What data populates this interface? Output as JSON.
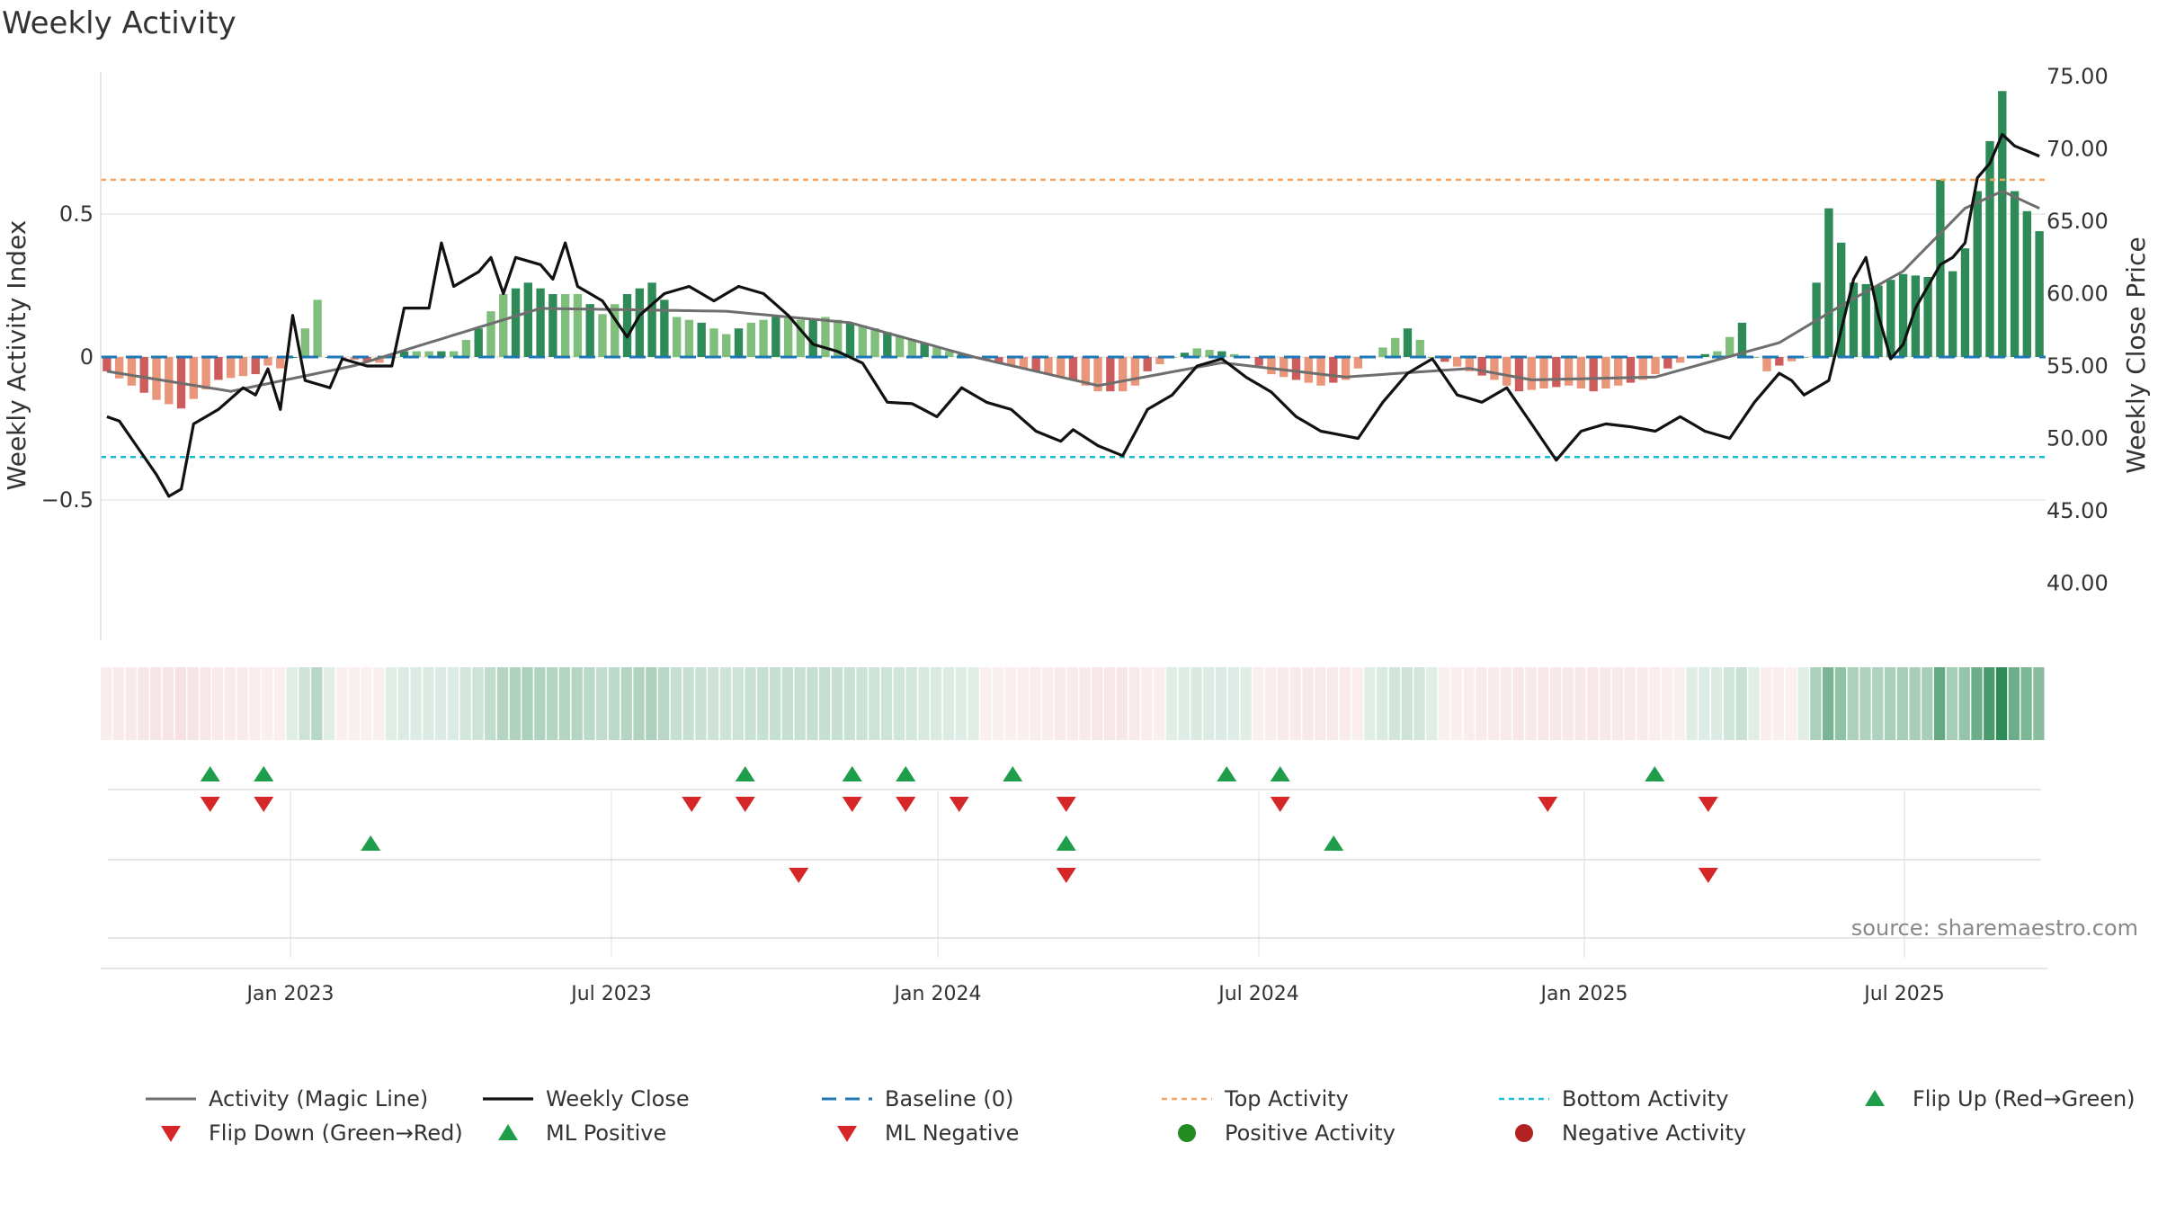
{
  "title": "Weekly Activity",
  "source": "source: sharemaestro.com",
  "legend": [
    {
      "key": "activity_line",
      "label": "Activity (Magic Line)"
    },
    {
      "key": "weekly_close",
      "label": "Weekly Close"
    },
    {
      "key": "baseline",
      "label": "Baseline (0)"
    },
    {
      "key": "top_activity",
      "label": "Top Activity"
    },
    {
      "key": "bottom_activity",
      "label": "Bottom Activity"
    },
    {
      "key": "flip_up",
      "label": "Flip Up (Red→Green)"
    },
    {
      "key": "flip_down",
      "label": "Flip Down (Green→Red)"
    },
    {
      "key": "ml_positive",
      "label": "ML Positive"
    },
    {
      "key": "ml_negative",
      "label": "ML Negative"
    },
    {
      "key": "positive_activity",
      "label": "Positive Activity"
    },
    {
      "key": "negative_activity",
      "label": "Negative Activity"
    }
  ],
  "colors": {
    "pos_dark": "#2e8b57",
    "pos_light": "#7fbf7b",
    "neg_dark": "#cd5c5c",
    "neg_light": "#e9967a",
    "close": "#111111",
    "magic": "#6e6e6e",
    "baseline": "#1f77b4",
    "top": "#f4a460",
    "bottom": "#17becf",
    "marker_up": "#1e9e4a",
    "marker_down": "#d62728",
    "dot_pos": "#228b22",
    "dot_neg": "#b22222"
  },
  "chart_data": {
    "type": "bar",
    "x_labels": [
      "Jan 2023",
      "Jul 2023",
      "Jan 2024",
      "Jul 2024",
      "Jan 2025",
      "Jul 2025"
    ],
    "y_left": {
      "label": "Weekly Activity Index",
      "ticks": [
        "0.5",
        "0",
        "−0.5"
      ],
      "range": [
        -1.0,
        1.0
      ]
    },
    "y_right": {
      "label": "Weekly Close Price",
      "ticks": [
        "75.00",
        "70.00",
        "65.00",
        "60.00",
        "55.00",
        "50.00",
        "45.00",
        "40.00"
      ],
      "range": [
        35.0,
        75.0
      ]
    },
    "top_activity": 0.62,
    "bottom_activity": -0.35,
    "series": [
      {
        "name": "Weekly Activity Index",
        "kind": "bar",
        "weeks": 157,
        "key_points": [
          [
            0,
            -0.05
          ],
          [
            4,
            -0.15
          ],
          [
            6,
            -0.18
          ],
          [
            9,
            -0.08
          ],
          [
            12,
            -0.06
          ],
          [
            13,
            -0.03
          ],
          [
            14,
            -0.04
          ],
          [
            15,
            0.0
          ],
          [
            17,
            0.2
          ],
          [
            18,
            0.0
          ],
          [
            22,
            -0.02
          ],
          [
            24,
            0.02
          ],
          [
            28,
            0.02
          ],
          [
            30,
            0.1
          ],
          [
            32,
            0.22
          ],
          [
            34,
            0.26
          ],
          [
            36,
            0.22
          ],
          [
            38,
            0.22
          ],
          [
            40,
            0.15
          ],
          [
            42,
            0.22
          ],
          [
            44,
            0.26
          ],
          [
            45,
            0.2
          ],
          [
            46,
            0.14
          ],
          [
            48,
            0.12
          ],
          [
            50,
            0.08
          ],
          [
            52,
            0.12
          ],
          [
            54,
            0.14
          ],
          [
            56,
            0.13
          ],
          [
            58,
            0.14
          ],
          [
            60,
            0.12
          ],
          [
            62,
            0.1
          ],
          [
            65,
            0.06
          ],
          [
            68,
            0.02
          ],
          [
            70,
            0.0
          ],
          [
            72,
            -0.02
          ],
          [
            74,
            -0.04
          ],
          [
            76,
            -0.06
          ],
          [
            78,
            -0.08
          ],
          [
            80,
            -0.12
          ],
          [
            82,
            -0.12
          ],
          [
            83,
            -0.1
          ],
          [
            84,
            -0.05
          ],
          [
            86,
            0.0
          ],
          [
            88,
            0.03
          ],
          [
            90,
            0.02
          ],
          [
            92,
            0.0
          ],
          [
            94,
            -0.06
          ],
          [
            96,
            -0.08
          ],
          [
            98,
            -0.1
          ],
          [
            100,
            -0.08
          ],
          [
            101,
            -0.04
          ],
          [
            102,
            0.0
          ],
          [
            105,
            0.1
          ],
          [
            106,
            0.06
          ],
          [
            107,
            0.0
          ],
          [
            110,
            -0.05
          ],
          [
            112,
            -0.08
          ],
          [
            114,
            -0.12
          ],
          [
            118,
            -0.1
          ],
          [
            120,
            -0.12
          ],
          [
            124,
            -0.08
          ],
          [
            126,
            -0.04
          ],
          [
            128,
            0.0
          ],
          [
            130,
            0.02
          ],
          [
            132,
            0.12
          ],
          [
            133,
            0.0
          ],
          [
            134,
            -0.05
          ],
          [
            135,
            -0.03
          ],
          [
            137,
            0.0
          ],
          [
            139,
            0.52
          ],
          [
            140,
            0.4
          ],
          [
            141,
            0.26
          ],
          [
            143,
            0.25
          ],
          [
            145,
            0.29
          ],
          [
            147,
            0.28
          ],
          [
            148,
            0.62
          ],
          [
            149,
            0.3
          ],
          [
            150,
            0.38
          ],
          [
            151,
            0.58
          ],
          [
            153,
            0.93
          ],
          [
            154,
            0.58
          ],
          [
            156,
            0.44
          ]
        ]
      },
      {
        "name": "Weekly Close",
        "kind": "line",
        "weeks": 157,
        "key_points": [
          [
            0,
            51.5
          ],
          [
            1,
            51.2
          ],
          [
            4,
            47.5
          ],
          [
            5,
            46.0
          ],
          [
            6,
            46.5
          ],
          [
            7,
            51.0
          ],
          [
            9,
            52.0
          ],
          [
            11,
            53.5
          ],
          [
            12,
            53.0
          ],
          [
            13,
            54.8
          ],
          [
            14,
            52.0
          ],
          [
            15,
            58.5
          ],
          [
            16,
            54.0
          ],
          [
            18,
            53.5
          ],
          [
            19,
            55.5
          ],
          [
            21,
            55.0
          ],
          [
            23,
            55.0
          ],
          [
            24,
            59.0
          ],
          [
            26,
            59.0
          ],
          [
            27,
            63.5
          ],
          [
            28,
            60.5
          ],
          [
            30,
            61.5
          ],
          [
            31,
            62.5
          ],
          [
            32,
            60.0
          ],
          [
            33,
            62.5
          ],
          [
            35,
            62.0
          ],
          [
            36,
            61.0
          ],
          [
            37,
            63.5
          ],
          [
            38,
            60.5
          ],
          [
            40,
            59.5
          ],
          [
            42,
            57.0
          ],
          [
            43,
            58.5
          ],
          [
            45,
            60.0
          ],
          [
            47,
            60.5
          ],
          [
            49,
            59.5
          ],
          [
            51,
            60.5
          ],
          [
            53,
            60.0
          ],
          [
            55,
            58.5
          ],
          [
            57,
            56.5
          ],
          [
            59,
            56.0
          ],
          [
            61,
            55.2
          ],
          [
            63,
            52.5
          ],
          [
            65,
            52.4
          ],
          [
            67,
            51.5
          ],
          [
            69,
            53.5
          ],
          [
            71,
            52.5
          ],
          [
            73,
            52.0
          ],
          [
            75,
            50.5
          ],
          [
            77,
            49.8
          ],
          [
            78,
            50.6
          ],
          [
            80,
            49.5
          ],
          [
            82,
            48.8
          ],
          [
            84,
            52.0
          ],
          [
            86,
            53.0
          ],
          [
            88,
            55.0
          ],
          [
            90,
            55.5
          ],
          [
            92,
            54.2
          ],
          [
            94,
            53.2
          ],
          [
            96,
            51.5
          ],
          [
            98,
            50.5
          ],
          [
            101,
            50.0
          ],
          [
            103,
            52.5
          ],
          [
            105,
            54.5
          ],
          [
            107,
            55.5
          ],
          [
            109,
            53.0
          ],
          [
            111,
            52.5
          ],
          [
            113,
            53.5
          ],
          [
            115,
            51.0
          ],
          [
            117,
            48.5
          ],
          [
            119,
            50.5
          ],
          [
            121,
            51.0
          ],
          [
            123,
            50.8
          ],
          [
            125,
            50.5
          ],
          [
            127,
            51.5
          ],
          [
            129,
            50.5
          ],
          [
            131,
            50.0
          ],
          [
            133,
            52.5
          ],
          [
            135,
            54.5
          ],
          [
            136,
            54.0
          ],
          [
            137,
            53.0
          ],
          [
            139,
            54.0
          ],
          [
            141,
            61.0
          ],
          [
            142,
            62.5
          ],
          [
            143,
            58.5
          ],
          [
            144,
            55.5
          ],
          [
            145,
            56.5
          ],
          [
            146,
            59.0
          ],
          [
            147,
            60.5
          ],
          [
            148,
            62.0
          ],
          [
            149,
            62.5
          ],
          [
            150,
            63.5
          ],
          [
            151,
            68.0
          ],
          [
            152,
            69.0
          ],
          [
            153,
            71.0
          ],
          [
            154,
            70.2
          ],
          [
            156,
            69.5
          ]
        ]
      },
      {
        "name": "Activity (Magic Line)",
        "kind": "line",
        "weeks": 157,
        "key_points": [
          [
            0,
            -0.05
          ],
          [
            10,
            -0.12
          ],
          [
            20,
            -0.03
          ],
          [
            35,
            0.17
          ],
          [
            50,
            0.16
          ],
          [
            60,
            0.12
          ],
          [
            70,
            0.0
          ],
          [
            80,
            -0.1
          ],
          [
            90,
            -0.02
          ],
          [
            100,
            -0.07
          ],
          [
            110,
            -0.04
          ],
          [
            115,
            -0.08
          ],
          [
            125,
            -0.07
          ],
          [
            135,
            0.05
          ],
          [
            140,
            0.18
          ],
          [
            145,
            0.3
          ],
          [
            150,
            0.52
          ],
          [
            153,
            0.58
          ],
          [
            156,
            0.52
          ]
        ]
      }
    ],
    "markers": {
      "flip_up": [
        "2022-11",
        "2022-12",
        "2022-12",
        "2023-09",
        "2023-11",
        "2023-11",
        "2023-12",
        "2023-12",
        "2024-02",
        "2024-06",
        "2024-07",
        "2025-02"
      ],
      "flip_down": [
        "2022-11",
        "2022-12",
        "2023-08",
        "2023-09",
        "2023-11",
        "2023-12",
        "2023-12",
        "2024-01",
        "2024-03",
        "2024-07",
        "2024-12",
        "2025-03"
      ],
      "ml_positive": [
        "2023-02",
        "2024-03",
        "2024-08"
      ],
      "ml_negative": [
        "2023-10",
        "2024-03",
        "2025-03"
      ]
    }
  }
}
